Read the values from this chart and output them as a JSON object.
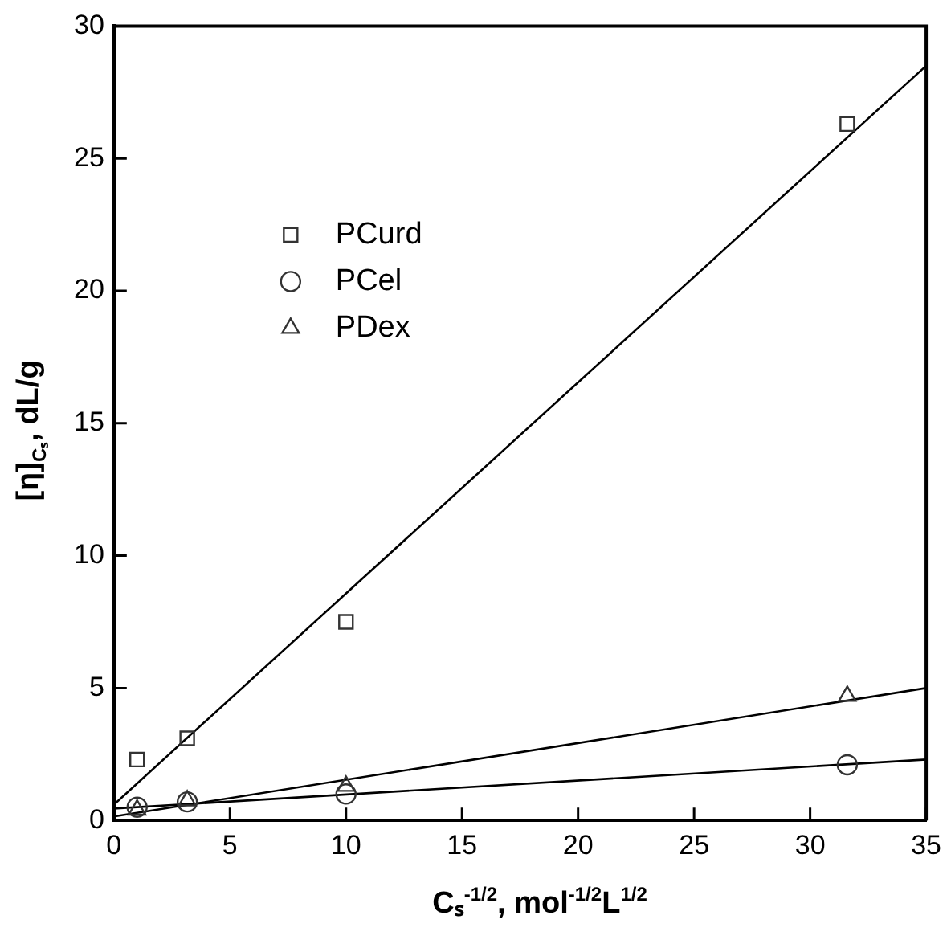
{
  "chart_data": {
    "type": "scatter",
    "xlabel": "Cₛ$^{-1/2}$, mol$^{-1/2}$L$^{1/2}$",
    "ylabel": "[η]$_{Cₛ}$, dL/g",
    "xlim": [
      0,
      35
    ],
    "xticks": [
      0,
      5,
      10,
      15,
      20,
      25,
      30,
      35
    ],
    "ylim": [
      0,
      30
    ],
    "yticks": [
      0,
      5,
      10,
      15,
      20,
      25,
      30
    ],
    "grid": false,
    "legend": "top left",
    "series": [
      {
        "name": "PCurd",
        "color": "#333333",
        "marker": "square",
        "x": [
          1,
          3.16,
          10,
          31.6
        ],
        "values": [
          2.3,
          3.1,
          7.5,
          26.3
        ]
      },
      {
        "name": "PCel",
        "color": "#333333",
        "marker": "circle",
        "x": [
          1,
          3.16,
          10,
          31.6
        ],
        "values": [
          0.5,
          0.7,
          1.0,
          2.1
        ]
      },
      {
        "name": "PDex",
        "color": "#333333",
        "marker": "triangle",
        "x": [
          1,
          3.16,
          10,
          31.6
        ],
        "values": [
          0.4,
          0.75,
          1.3,
          4.7
        ]
      },
      {
        "type": "line",
        "color": "#000000",
        "marker": "none",
        "x": [
          0,
          35
        ],
        "values": [
          0.6,
          28.5
        ]
      },
      {
        "type": "line",
        "color": "#000000",
        "marker": "none",
        "x": [
          0,
          35
        ],
        "values": [
          0.45,
          2.3
        ]
      },
      {
        "type": "line",
        "color": "#000000",
        "marker": "none",
        "x": [
          0,
          35
        ],
        "values": [
          0.15,
          5.0
        ]
      }
    ]
  }
}
